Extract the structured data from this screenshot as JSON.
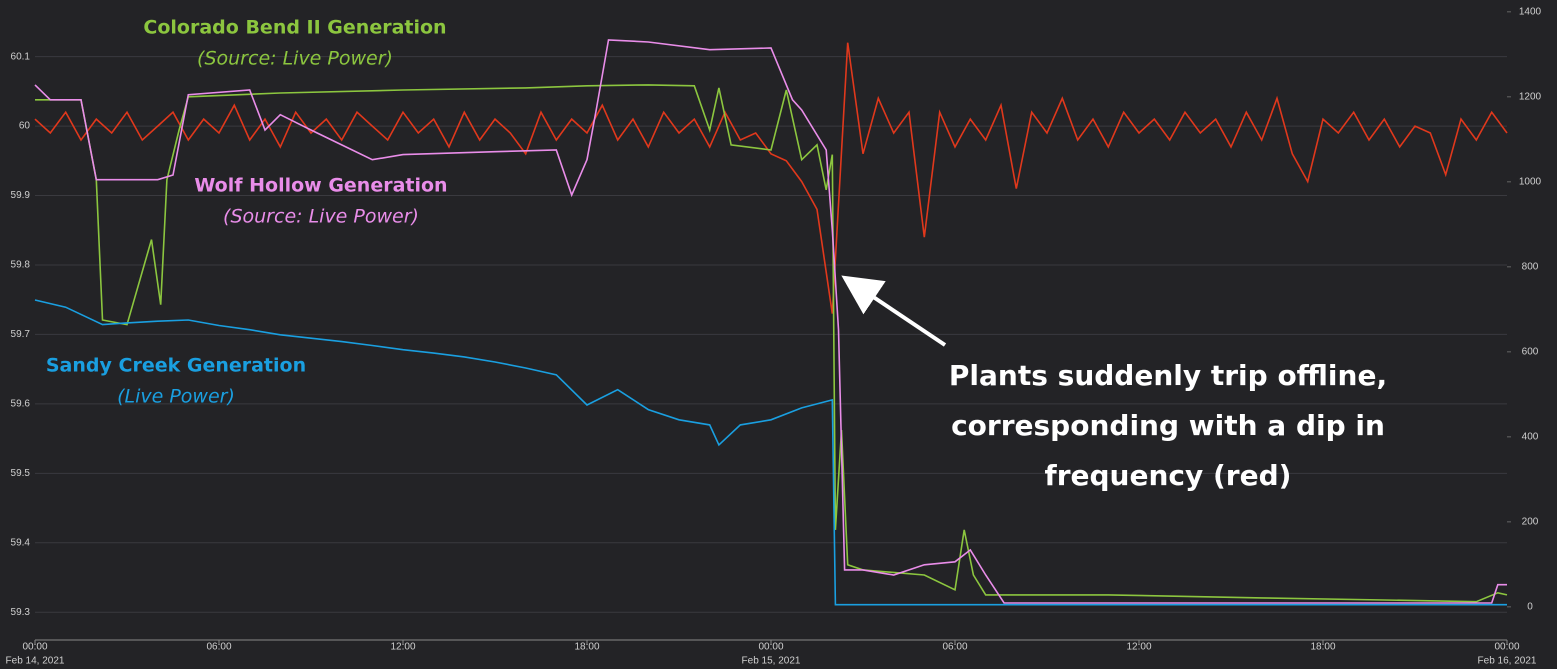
{
  "chart_data": {
    "type": "line",
    "xlim": [
      0,
      48
    ],
    "xticks": [
      {
        "value": 0,
        "label": "00:00"
      },
      {
        "value": 6,
        "label": "06:00"
      },
      {
        "value": 12,
        "label": "12:00"
      },
      {
        "value": 18,
        "label": "18:00"
      },
      {
        "value": 24,
        "label": "00:00"
      },
      {
        "value": 30,
        "label": "06:00"
      },
      {
        "value": 36,
        "label": "12:00"
      },
      {
        "value": 42,
        "label": "18:00"
      },
      {
        "value": 48,
        "label": "00:00"
      }
    ],
    "x_date_labels": [
      {
        "value": 0,
        "label": "Feb 14, 2021"
      },
      {
        "value": 24,
        "label": "Feb 15, 2021"
      },
      {
        "value": 48,
        "label": "Feb 16, 2021"
      }
    ],
    "ylim": [
      59.26,
      60.17
    ],
    "yticks": [
      59.3,
      59.4,
      59.5,
      59.6,
      59.7,
      59.8,
      59.9,
      60,
      60.1
    ],
    "y2lim": [
      -78,
      1409
    ],
    "y2ticks": [
      0,
      200,
      400,
      600,
      800,
      1000,
      1200,
      1400
    ],
    "grid": true,
    "annotations": [
      "Plants suddenly trip offline,",
      "corresponding with a dip in",
      "frequency (red)"
    ],
    "series": [
      {
        "name": "Frequency",
        "color": "#e0381c",
        "axis": "y",
        "x": [
          0,
          0.5,
          1,
          1.5,
          2,
          2.5,
          3,
          3.5,
          4,
          4.5,
          5,
          5.5,
          6,
          6.5,
          7,
          7.5,
          8,
          8.5,
          9,
          9.5,
          10,
          10.5,
          11,
          11.5,
          12,
          12.5,
          13,
          13.5,
          14,
          14.5,
          15,
          15.5,
          16,
          16.5,
          17,
          17.5,
          18,
          18.5,
          19,
          19.5,
          20,
          20.5,
          21,
          21.5,
          22,
          22.5,
          23,
          23.5,
          24,
          24.5,
          25,
          25.5,
          26,
          26.5,
          27,
          27.5,
          28,
          28.5,
          29,
          29.5,
          30,
          30.5,
          31,
          31.5,
          32,
          32.5,
          33,
          33.5,
          34,
          34.5,
          35,
          35.5,
          36,
          36.5,
          37,
          37.5,
          38,
          38.5,
          39,
          39.5,
          40,
          40.5,
          41,
          41.5,
          42,
          42.5,
          43,
          43.5,
          44,
          44.5,
          45,
          45.5,
          46,
          46.5,
          47,
          47.5,
          48
        ],
        "values": [
          60.01,
          59.99,
          60.02,
          59.98,
          60.01,
          59.99,
          60.02,
          59.98,
          60.0,
          60.02,
          59.98,
          60.01,
          59.99,
          60.03,
          59.98,
          60.01,
          59.97,
          60.02,
          59.99,
          60.01,
          59.98,
          60.02,
          60.0,
          59.98,
          60.02,
          59.99,
          60.01,
          59.97,
          60.02,
          59.98,
          60.01,
          59.99,
          59.96,
          60.02,
          59.98,
          60.01,
          59.99,
          60.03,
          59.98,
          60.01,
          59.97,
          60.02,
          59.99,
          60.01,
          59.97,
          60.02,
          59.98,
          59.99,
          59.96,
          59.95,
          59.92,
          59.88,
          59.73,
          60.12,
          59.96,
          60.04,
          59.99,
          60.02,
          59.84,
          60.02,
          59.97,
          60.01,
          59.98,
          60.03,
          59.91,
          60.02,
          59.99,
          60.04,
          59.98,
          60.01,
          59.97,
          60.02,
          59.99,
          60.01,
          59.98,
          60.02,
          59.99,
          60.01,
          59.97,
          60.02,
          59.98,
          60.04,
          59.96,
          59.92,
          60.01,
          59.99,
          60.02,
          59.98,
          60.01,
          59.97,
          60.0,
          59.99,
          59.93,
          60.01,
          59.98,
          60.02,
          59.99
        ]
      },
      {
        "name": "Colorado Bend II Generation",
        "source": "(Source: Live Power)",
        "color": "#8cc63f",
        "axis": "y2",
        "x": [
          0,
          1.5,
          2,
          2.2,
          3,
          3.8,
          4.1,
          4.3,
          4.7,
          5,
          8,
          12,
          16,
          18,
          20,
          21.5,
          22,
          22.3,
          22.7,
          24,
          24.5,
          25,
          25.5,
          25.8,
          26,
          26.1,
          26.3,
          26.5,
          27,
          29,
          30,
          30.3,
          30.6,
          31,
          32,
          35,
          40,
          44,
          47,
          47.7,
          48
        ],
        "values": [
          1193,
          1193,
          1005,
          675,
          664,
          864,
          711,
          1005,
          1122,
          1200,
          1209,
          1216,
          1221,
          1226,
          1228,
          1226,
          1122,
          1221,
          1087,
          1075,
          1216,
          1052,
          1087,
          981,
          1064,
          181,
          416,
          99,
          87,
          75,
          40,
          181,
          75,
          28,
          28,
          28,
          21,
          16,
          12,
          33,
          28
        ]
      },
      {
        "name": "Wolf Hollow Generation",
        "source": "(Source: Live Power)",
        "color": "#e98de9",
        "axis": "y2",
        "x": [
          0,
          0.5,
          1.5,
          2,
          4,
          4.5,
          5,
          7,
          7.5,
          8,
          9,
          10,
          11,
          12,
          15,
          17,
          17.5,
          18,
          18.3,
          18.7,
          20,
          22,
          24,
          24.7,
          25,
          25.8,
          26,
          26.2,
          26.4,
          27,
          28,
          29,
          30,
          30.5,
          31,
          31.6,
          36,
          44,
          47.5,
          47.7,
          48
        ],
        "values": [
          1228,
          1193,
          1193,
          1005,
          1005,
          1016,
          1205,
          1216,
          1122,
          1158,
          1122,
          1087,
          1052,
          1064,
          1071,
          1075,
          969,
          1052,
          1169,
          1334,
          1329,
          1311,
          1315,
          1193,
          1169,
          1075,
          887,
          652,
          87,
          87,
          75,
          99,
          106,
          134,
          75,
          9,
          9,
          9,
          9,
          52,
          52
        ]
      },
      {
        "name": "Sandy Creek Generation",
        "source": "(Live Power)",
        "color": "#1a9fe0",
        "axis": "y2",
        "x": [
          0,
          1,
          2.2,
          3,
          4,
          5,
          6,
          7,
          8,
          9,
          10,
          11,
          12,
          13,
          14,
          15,
          16,
          17,
          18,
          19,
          20,
          21,
          22,
          22.3,
          23,
          24,
          25,
          26,
          26.1,
          27,
          30,
          36,
          42,
          48
        ],
        "values": [
          722,
          705,
          664,
          668,
          672,
          675,
          662,
          652,
          640,
          632,
          624,
          615,
          605,
          597,
          588,
          576,
          562,
          546,
          475,
          511,
          464,
          440,
          428,
          381,
          428,
          440,
          468,
          487,
          5,
          5,
          5,
          5,
          5,
          5
        ]
      }
    ]
  }
}
